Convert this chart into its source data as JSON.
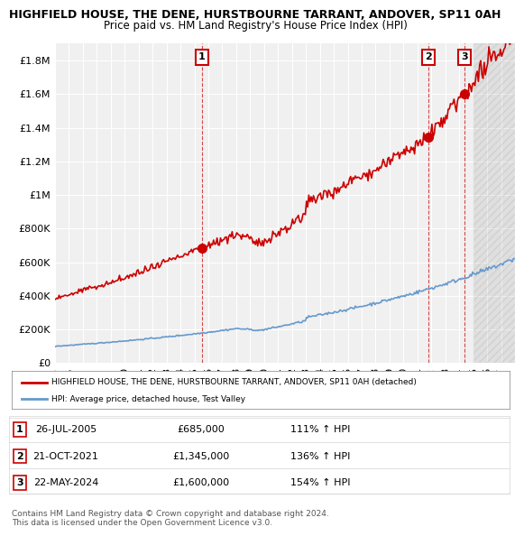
{
  "title": "HIGHFIELD HOUSE, THE DENE, HURSTBOURNE TARRANT, ANDOVER, SP11 0AH",
  "subtitle": "Price paid vs. HM Land Registry's House Price Index (HPI)",
  "ylim": [
    0,
    1900000
  ],
  "yticks": [
    0,
    200000,
    400000,
    600000,
    800000,
    1000000,
    1200000,
    1400000,
    1600000,
    1800000
  ],
  "ytick_labels": [
    "£0",
    "£200K",
    "£400K",
    "£600K",
    "£800K",
    "£1M",
    "£1.2M",
    "£1.4M",
    "£1.6M",
    "£1.8M"
  ],
  "sale_dates": [
    "2005-07-26",
    "2021-10-21",
    "2024-05-22"
  ],
  "sale_prices": [
    685000,
    1345000,
    1600000
  ],
  "sale_labels": [
    "1",
    "2",
    "3"
  ],
  "sale_hpi_pct": [
    "111%",
    "136%",
    "154%"
  ],
  "hpi_color": "#6699cc",
  "price_color": "#cc0000",
  "legend_label_price": "HIGHFIELD HOUSE, THE DENE, HURSTBOURNE TARRANT, ANDOVER, SP11 0AH (detached)",
  "legend_label_hpi": "HPI: Average price, detached house, Test Valley",
  "table_rows": [
    [
      "1",
      "26-JUL-2005",
      "£685,000",
      "111% ↑ HPI"
    ],
    [
      "2",
      "21-OCT-2021",
      "£1,345,000",
      "136% ↑ HPI"
    ],
    [
      "3",
      "22-MAY-2024",
      "£1,600,000",
      "154% ↑ HPI"
    ]
  ],
  "footer": "Contains HM Land Registry data © Crown copyright and database right 2024.\nThis data is licensed under the Open Government Licence v3.0.",
  "bg_color": "#ffffff",
  "plot_bg_color": "#f0f0f0",
  "grid_color": "#ffffff",
  "hatch_color": "#dddddd"
}
